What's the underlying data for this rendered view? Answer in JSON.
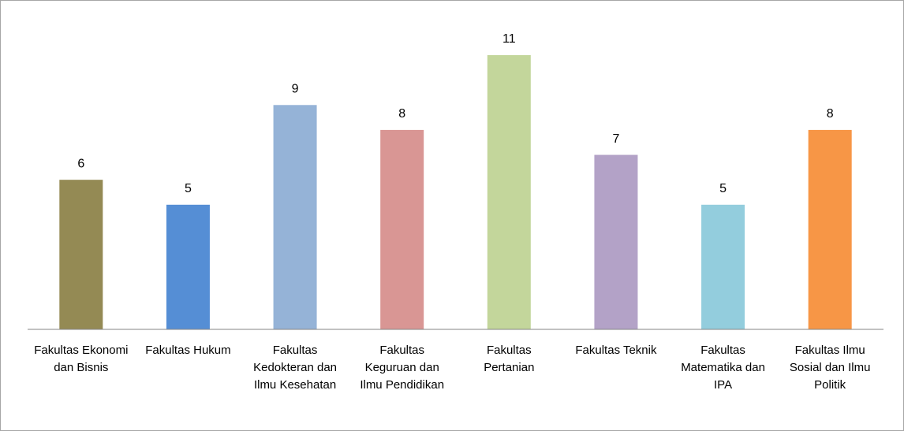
{
  "chart_data": {
    "type": "bar",
    "categories": [
      "Fakultas Ekonomi dan Bisnis",
      "Fakultas Hukum",
      "Fakultas Kedokteran dan Ilmu Kesehatan",
      "Fakultas Keguruan dan Ilmu Pendidikan",
      "Fakultas Pertanian",
      "Fakultas Teknik",
      "Fakultas Matematika dan IPA",
      "Fakultas Ilmu Sosial dan Ilmu Politik"
    ],
    "values": [
      6,
      5,
      9,
      8,
      11,
      7,
      5,
      8
    ],
    "colors": [
      "#948a54",
      "#558ed5",
      "#95b3d7",
      "#d99694",
      "#c3d69b",
      "#b3a2c7",
      "#93cddd",
      "#f79646"
    ],
    "ylim": [
      0,
      11
    ]
  }
}
